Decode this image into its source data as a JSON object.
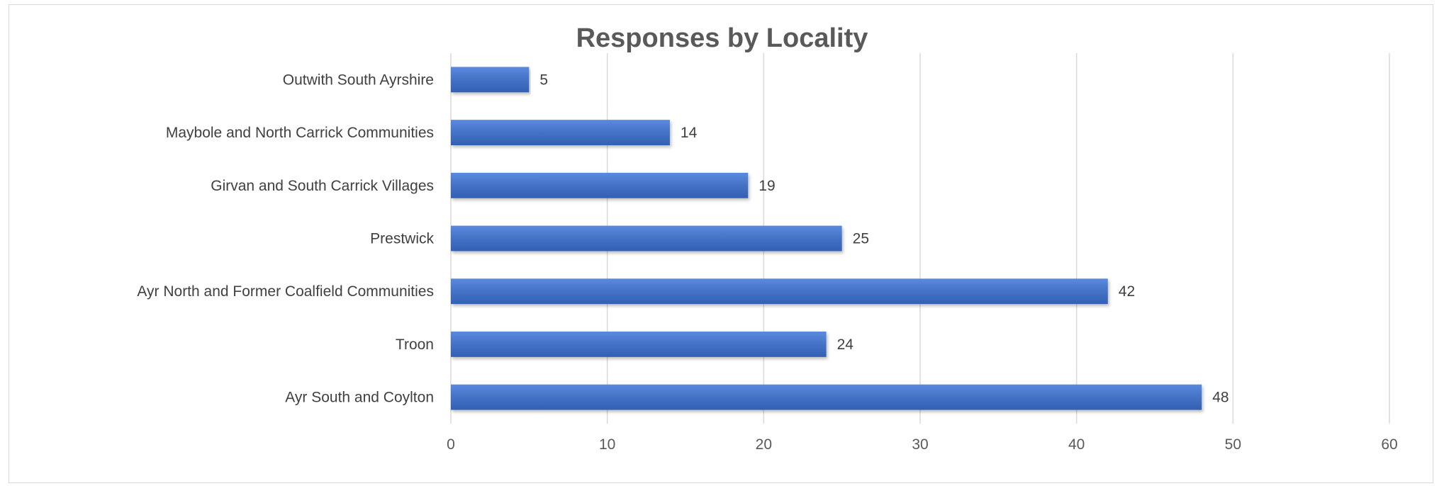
{
  "chart_data": {
    "type": "bar",
    "orientation": "horizontal",
    "title": "Responses by Locality",
    "xlabel": "",
    "ylabel": "",
    "categories": [
      "Outwith South Ayrshire",
      "Maybole and North Carrick Communities",
      "Girvan and South Carrick Villages",
      "Prestwick",
      "Ayr North and Former Coalfield Communities",
      "Troon",
      "Ayr South and Coylton"
    ],
    "values": [
      5,
      14,
      19,
      25,
      42,
      24,
      48
    ],
    "xlim": [
      0,
      60
    ],
    "ticks": [
      0,
      10,
      20,
      30,
      40,
      50,
      60
    ],
    "grid": "vertical",
    "legend": "none",
    "data_labels": true,
    "colors": {
      "bar": "#4472c4",
      "bar_light": "#5585d8",
      "bar_dark": "#3560b0",
      "grid": "#d9d9d9",
      "title": "#595959",
      "text": "#404040"
    }
  }
}
